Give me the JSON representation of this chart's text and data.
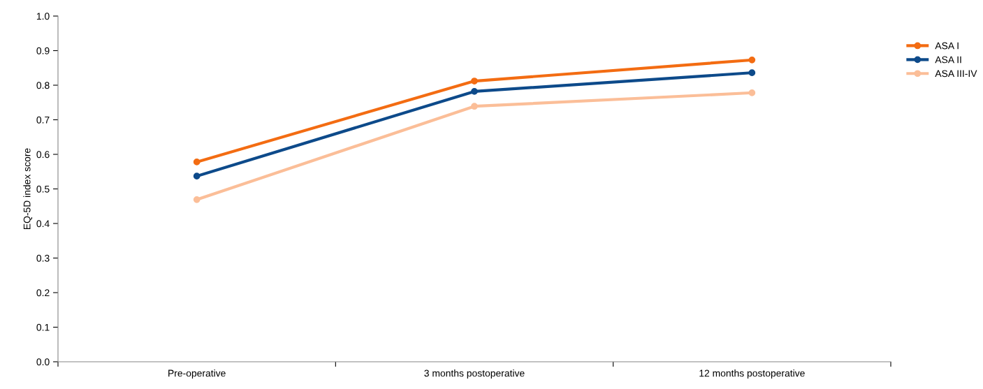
{
  "chart_data": {
    "type": "line",
    "ylabel": "EQ-5D index score",
    "categories": [
      "Pre-operative",
      "3 months postoperative",
      "12 months postoperative"
    ],
    "series": [
      {
        "name": "ASA I",
        "color": "#f36c12",
        "values": [
          0.578,
          0.812,
          0.873
        ]
      },
      {
        "name": "ASA II",
        "color": "#0d4a8a",
        "values": [
          0.537,
          0.782,
          0.836
        ]
      },
      {
        "name": "ASA III-IV",
        "color": "#fbbe98",
        "values": [
          0.469,
          0.739,
          0.778
        ]
      }
    ],
    "ylim": [
      0,
      1
    ],
    "yticks": [
      {
        "value": 0,
        "label": "0.0"
      },
      {
        "value": 0.1,
        "label": "0.1"
      },
      {
        "value": 0.2,
        "label": "0.2"
      },
      {
        "value": 0.3,
        "label": "0.3"
      },
      {
        "value": 0.4,
        "label": "0.4"
      },
      {
        "value": 0.5,
        "label": "0.5"
      },
      {
        "value": 0.6,
        "label": "0.6"
      },
      {
        "value": 0.7,
        "label": "0.7"
      },
      {
        "value": 0.8,
        "label": "0.8"
      },
      {
        "value": 0.9,
        "label": "0.9"
      },
      {
        "value": 1,
        "label": "1.0"
      }
    ],
    "grid": false,
    "legend": "top right",
    "marker": "circle",
    "line_style": "solid"
  }
}
